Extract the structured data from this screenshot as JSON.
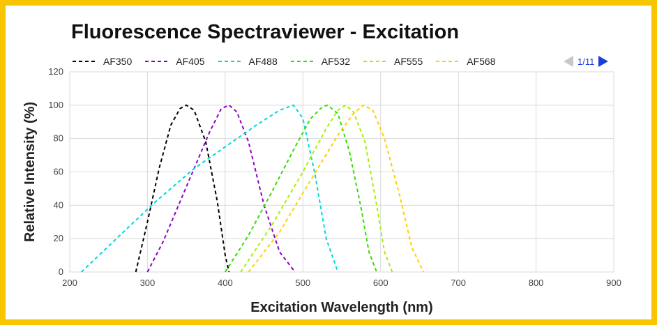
{
  "title": "Fluorescence Spectraviewer - Excitation",
  "pager": {
    "text": "1/11",
    "prev_icon": "triangle-left-icon",
    "next_icon": "triangle-right-icon",
    "prev_color": "#c8c8c8",
    "next_color": "#1a3fd6"
  },
  "frame_color": "#f7c600",
  "chart_data": {
    "type": "line",
    "title": "Fluorescence Spectraviewer - Excitation",
    "xlabel": "Excitation Wavelength (nm)",
    "ylabel": "Relative Intensity (%)",
    "xlim": [
      200,
      900
    ],
    "ylim": [
      0,
      120
    ],
    "xticks": [
      200,
      300,
      400,
      500,
      600,
      700,
      800,
      900
    ],
    "yticks": [
      0,
      20,
      40,
      60,
      80,
      100,
      120
    ],
    "grid": true,
    "line_style": "dashed",
    "legend_position": "top",
    "series": [
      {
        "name": "AF350",
        "color": "#000000",
        "x": [
          285,
          300,
          315,
          330,
          342,
          350,
          360,
          375,
          390,
          400,
          405
        ],
        "y": [
          0,
          30,
          62,
          88,
          98,
          100,
          97,
          78,
          42,
          10,
          0
        ]
      },
      {
        "name": "AF405",
        "color": "#8a00c8",
        "x": [
          300,
          320,
          340,
          360,
          380,
          395,
          405,
          415,
          430,
          450,
          470,
          490
        ],
        "y": [
          0,
          18,
          40,
          62,
          84,
          98,
          100,
          96,
          78,
          40,
          12,
          0
        ]
      },
      {
        "name": "AF488",
        "color": "#00d8d8",
        "x": [
          215,
          260,
          310,
          360,
          400,
          440,
          470,
          488,
          500,
          515,
          530,
          545
        ],
        "y": [
          0,
          20,
          42,
          62,
          75,
          88,
          97,
          100,
          92,
          60,
          20,
          0
        ]
      },
      {
        "name": "AF532",
        "color": "#33dd00",
        "x": [
          400,
          430,
          460,
          490,
          510,
          525,
          532,
          545,
          560,
          575,
          585,
          595
        ],
        "y": [
          0,
          22,
          48,
          75,
          92,
          99,
          100,
          95,
          72,
          38,
          12,
          0
        ]
      },
      {
        "name": "AF555",
        "color": "#a8f000",
        "x": [
          420,
          460,
          500,
          530,
          545,
          555,
          565,
          580,
          595,
          605,
          615
        ],
        "y": [
          0,
          28,
          60,
          86,
          97,
          100,
          96,
          78,
          40,
          12,
          0
        ]
      },
      {
        "name": "AF568",
        "color": "#ffd000",
        "x": [
          430,
          470,
          510,
          545,
          565,
          578,
          590,
          605,
          625,
          640,
          655
        ],
        "y": [
          0,
          24,
          55,
          82,
          95,
          100,
          97,
          80,
          45,
          15,
          0
        ]
      }
    ]
  }
}
